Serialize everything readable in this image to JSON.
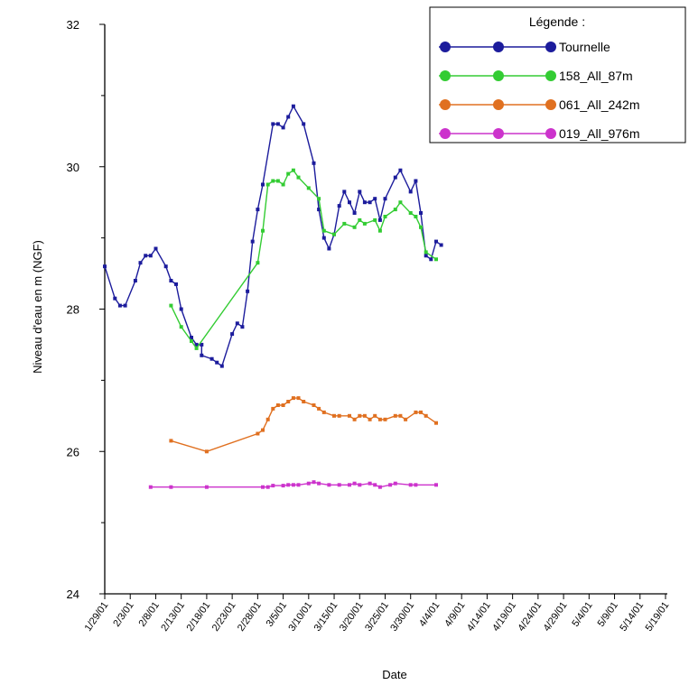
{
  "chart_data": {
    "type": "line",
    "xlabel": "Date",
    "ylabel": "Niveau d'eau en m (NGF)",
    "ylim": [
      24,
      32
    ],
    "yticks": [
      24,
      26,
      28,
      30,
      32
    ],
    "xlim": [
      "2001-01-29",
      "2001-05-19"
    ],
    "x_tick_labels": [
      "1/29/01",
      "2/3/01",
      "2/8/01",
      "2/13/01",
      "2/18/01",
      "2/23/01",
      "2/28/01",
      "3/5/01",
      "3/10/01",
      "3/15/01",
      "3/20/01",
      "3/25/01",
      "3/30/01",
      "4/4/01",
      "4/9/01",
      "4/14/01",
      "4/19/01",
      "4/24/01",
      "4/29/01",
      "5/4/01",
      "5/9/01",
      "5/14/01",
      "5/19/01"
    ],
    "legend": {
      "title": "Légende :",
      "position": "top-right"
    },
    "series": [
      {
        "name": "Tournelle",
        "color": "#1c1c9c",
        "marker_color": "#1c1c9c",
        "points": [
          [
            "2001-01-29",
            28.6
          ],
          [
            "2001-01-31",
            28.15
          ],
          [
            "2001-02-01",
            28.05
          ],
          [
            "2001-02-02",
            28.05
          ],
          [
            "2001-02-04",
            28.4
          ],
          [
            "2001-02-05",
            28.65
          ],
          [
            "2001-02-06",
            28.75
          ],
          [
            "2001-02-07",
            28.75
          ],
          [
            "2001-02-08",
            28.85
          ],
          [
            "2001-02-10",
            28.6
          ],
          [
            "2001-02-11",
            28.4
          ],
          [
            "2001-02-12",
            28.35
          ],
          [
            "2001-02-13",
            28.0
          ],
          [
            "2001-02-15",
            27.6
          ],
          [
            "2001-02-16",
            27.5
          ],
          [
            "2001-02-17",
            27.5
          ],
          [
            "2001-02-17",
            27.35
          ],
          [
            "2001-02-19",
            27.3
          ],
          [
            "2001-02-20",
            27.25
          ],
          [
            "2001-02-21",
            27.2
          ],
          [
            "2001-02-23",
            27.65
          ],
          [
            "2001-02-24",
            27.8
          ],
          [
            "2001-02-25",
            27.75
          ],
          [
            "2001-02-26",
            28.25
          ],
          [
            "2001-02-27",
            28.95
          ],
          [
            "2001-02-28",
            29.4
          ],
          [
            "2001-03-01",
            29.75
          ],
          [
            "2001-03-03",
            30.6
          ],
          [
            "2001-03-04",
            30.6
          ],
          [
            "2001-03-05",
            30.55
          ],
          [
            "2001-03-06",
            30.7
          ],
          [
            "2001-03-07",
            30.85
          ],
          [
            "2001-03-09",
            30.6
          ],
          [
            "2001-03-11",
            30.05
          ],
          [
            "2001-03-12",
            29.4
          ],
          [
            "2001-03-13",
            29.0
          ],
          [
            "2001-03-14",
            28.85
          ],
          [
            "2001-03-15",
            29.05
          ],
          [
            "2001-03-16",
            29.45
          ],
          [
            "2001-03-17",
            29.65
          ],
          [
            "2001-03-18",
            29.5
          ],
          [
            "2001-03-19",
            29.35
          ],
          [
            "2001-03-20",
            29.65
          ],
          [
            "2001-03-21",
            29.5
          ],
          [
            "2001-03-22",
            29.5
          ],
          [
            "2001-03-23",
            29.55
          ],
          [
            "2001-03-24",
            29.25
          ],
          [
            "2001-03-25",
            29.55
          ],
          [
            "2001-03-27",
            29.85
          ],
          [
            "2001-03-28",
            29.95
          ],
          [
            "2001-03-30",
            29.65
          ],
          [
            "2001-03-31",
            29.8
          ],
          [
            "2001-04-01",
            29.35
          ],
          [
            "2001-04-02",
            28.75
          ],
          [
            "2001-04-03",
            28.7
          ],
          [
            "2001-04-04",
            28.95
          ],
          [
            "2001-04-05",
            28.9
          ]
        ]
      },
      {
        "name": "158_All_87m",
        "color": "#33cc33",
        "marker_color": "#33cc33",
        "points": [
          [
            "2001-02-11",
            28.05
          ],
          [
            "2001-02-13",
            27.75
          ],
          [
            "2001-02-15",
            27.55
          ],
          [
            "2001-02-16",
            27.45
          ],
          [
            "2001-02-28",
            28.65
          ],
          [
            "2001-03-01",
            29.1
          ],
          [
            "2001-03-02",
            29.75
          ],
          [
            "2001-03-03",
            29.8
          ],
          [
            "2001-03-04",
            29.8
          ],
          [
            "2001-03-05",
            29.75
          ],
          [
            "2001-03-06",
            29.9
          ],
          [
            "2001-03-07",
            29.95
          ],
          [
            "2001-03-08",
            29.85
          ],
          [
            "2001-03-10",
            29.7
          ],
          [
            "2001-03-12",
            29.55
          ],
          [
            "2001-03-13",
            29.1
          ],
          [
            "2001-03-15",
            29.05
          ],
          [
            "2001-03-17",
            29.2
          ],
          [
            "2001-03-19",
            29.15
          ],
          [
            "2001-03-20",
            29.25
          ],
          [
            "2001-03-21",
            29.2
          ],
          [
            "2001-03-23",
            29.25
          ],
          [
            "2001-03-24",
            29.1
          ],
          [
            "2001-03-25",
            29.3
          ],
          [
            "2001-03-27",
            29.4
          ],
          [
            "2001-03-28",
            29.5
          ],
          [
            "2001-03-30",
            29.35
          ],
          [
            "2001-03-31",
            29.3
          ],
          [
            "2001-04-01",
            29.15
          ],
          [
            "2001-04-02",
            28.8
          ],
          [
            "2001-04-04",
            28.7
          ]
        ]
      },
      {
        "name": "061_All_242m",
        "color": "#e07020",
        "marker_color": "#e07020",
        "points": [
          [
            "2001-02-11",
            26.15
          ],
          [
            "2001-02-18",
            26.0
          ],
          [
            "2001-02-28",
            26.25
          ],
          [
            "2001-03-01",
            26.3
          ],
          [
            "2001-03-02",
            26.45
          ],
          [
            "2001-03-03",
            26.6
          ],
          [
            "2001-03-04",
            26.65
          ],
          [
            "2001-03-05",
            26.65
          ],
          [
            "2001-03-06",
            26.7
          ],
          [
            "2001-03-07",
            26.75
          ],
          [
            "2001-03-08",
            26.75
          ],
          [
            "2001-03-09",
            26.7
          ],
          [
            "2001-03-11",
            26.65
          ],
          [
            "2001-03-12",
            26.6
          ],
          [
            "2001-03-13",
            26.55
          ],
          [
            "2001-03-15",
            26.5
          ],
          [
            "2001-03-16",
            26.5
          ],
          [
            "2001-03-18",
            26.5
          ],
          [
            "2001-03-19",
            26.45
          ],
          [
            "2001-03-20",
            26.5
          ],
          [
            "2001-03-21",
            26.5
          ],
          [
            "2001-03-22",
            26.45
          ],
          [
            "2001-03-23",
            26.5
          ],
          [
            "2001-03-24",
            26.45
          ],
          [
            "2001-03-25",
            26.45
          ],
          [
            "2001-03-27",
            26.5
          ],
          [
            "2001-03-28",
            26.5
          ],
          [
            "2001-03-29",
            26.45
          ],
          [
            "2001-03-31",
            26.55
          ],
          [
            "2001-04-01",
            26.55
          ],
          [
            "2001-04-02",
            26.5
          ],
          [
            "2001-04-04",
            26.4
          ]
        ]
      },
      {
        "name": "019_All_976m",
        "color": "#cc33cc",
        "marker_color": "#cc33cc",
        "points": [
          [
            "2001-02-07",
            25.5
          ],
          [
            "2001-02-11",
            25.5
          ],
          [
            "2001-02-18",
            25.5
          ],
          [
            "2001-03-01",
            25.5
          ],
          [
            "2001-03-02",
            25.5
          ],
          [
            "2001-03-03",
            25.52
          ],
          [
            "2001-03-05",
            25.52
          ],
          [
            "2001-03-06",
            25.53
          ],
          [
            "2001-03-07",
            25.53
          ],
          [
            "2001-03-08",
            25.53
          ],
          [
            "2001-03-10",
            25.55
          ],
          [
            "2001-03-11",
            25.57
          ],
          [
            "2001-03-12",
            25.55
          ],
          [
            "2001-03-14",
            25.53
          ],
          [
            "2001-03-16",
            25.53
          ],
          [
            "2001-03-18",
            25.53
          ],
          [
            "2001-03-19",
            25.55
          ],
          [
            "2001-03-20",
            25.53
          ],
          [
            "2001-03-22",
            25.55
          ],
          [
            "2001-03-23",
            25.53
          ],
          [
            "2001-03-24",
            25.5
          ],
          [
            "2001-03-26",
            25.53
          ],
          [
            "2001-03-27",
            25.55
          ],
          [
            "2001-03-30",
            25.53
          ],
          [
            "2001-03-31",
            25.53
          ],
          [
            "2001-04-04",
            25.53
          ]
        ]
      }
    ]
  }
}
